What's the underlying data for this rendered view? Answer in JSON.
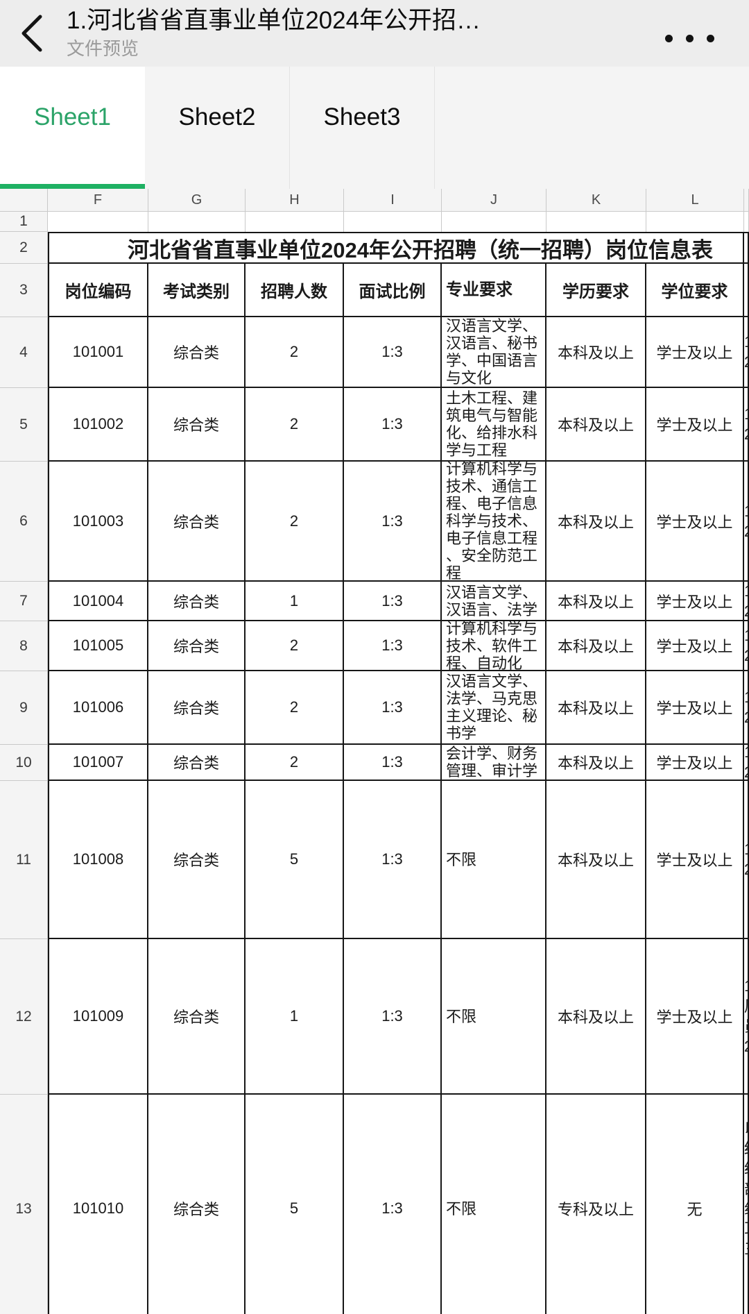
{
  "topbar": {
    "title": "1.河北省省直事业单位2024年公开招…",
    "subtitle": "文件预览",
    "back_icon": "chevron-left-icon",
    "menu_icon": "more-dots-icon"
  },
  "tabs": [
    {
      "label": "Sheet1",
      "active": true
    },
    {
      "label": "Sheet2",
      "active": false
    },
    {
      "label": "Sheet3",
      "active": false
    }
  ],
  "colors": {
    "active_tab_text": "#2ba368",
    "active_tab_underline": "#1fb163",
    "topbar_bg": "#ededed",
    "tab_bg": "#f4f4f4",
    "table_border": "#161616",
    "grid_light": "#c9c9c9"
  },
  "sheet": {
    "column_letters": [
      "F",
      "G",
      "H",
      "I",
      "J",
      "K",
      "L"
    ],
    "empty_row_number": "1",
    "title_row": {
      "number": "2",
      "text": "河北省省直事业单位2024年公开招聘（统一招聘）岗位信息表"
    },
    "header_row": {
      "number": "3",
      "cells": [
        "岗位编码",
        "考试类别",
        "招聘人数",
        "面试比例",
        "专业要求",
        "学历要求",
        "学位要求"
      ]
    },
    "data_rows": [
      {
        "number": "4",
        "code": "101001",
        "exam_type": "综合类",
        "headcount": "2",
        "interview_ratio": "1:3",
        "major": "汉语言文学、汉语言、秘书学、中国语言与文化",
        "education": "本科及以上",
        "degree": "学士及以上",
        "clipped_fragment": "1\n2"
      },
      {
        "number": "5",
        "code": "101002",
        "exam_type": "综合类",
        "headcount": "2",
        "interview_ratio": "1:3",
        "major": "土木工程、建筑电气与智能化、给排水科学与工程",
        "education": "本科及以上",
        "degree": "学士及以上",
        "clipped_fragment": "1\n2"
      },
      {
        "number": "6",
        "code": "101003",
        "exam_type": "综合类",
        "headcount": "2",
        "interview_ratio": "1:3",
        "major": "计算机科学与技术、通信工程、电子信息科学与技术、电子信息工程、安全防范工程",
        "education": "本科及以上",
        "degree": "学士及以上",
        "clipped_fragment": "1\n2"
      },
      {
        "number": "7",
        "code": "101004",
        "exam_type": "综合类",
        "headcount": "1",
        "interview_ratio": "1:3",
        "major": "汉语言文学、汉语言、法学",
        "education": "本科及以上",
        "degree": "学士及以上",
        "clipped_fragment": "1\n2"
      },
      {
        "number": "8",
        "code": "101005",
        "exam_type": "综合类",
        "headcount": "2",
        "interview_ratio": "1:3",
        "major": "计算机科学与技术、软件工程、自动化",
        "education": "本科及以上",
        "degree": "学士及以上",
        "clipped_fragment": "1\n2"
      },
      {
        "number": "9",
        "code": "101006",
        "exam_type": "综合类",
        "headcount": "2",
        "interview_ratio": "1:3",
        "major": "汉语言文学、法学、马克思主义理论、秘书学",
        "education": "本科及以上",
        "degree": "学士及以上",
        "clipped_fragment": "1\n2"
      },
      {
        "number": "10",
        "code": "101007",
        "exam_type": "综合类",
        "headcount": "2",
        "interview_ratio": "1:3",
        "major": "会计学、财务管理、审计学",
        "education": "本科及以上",
        "degree": "学士及以上",
        "clipped_fragment": "1\n2"
      },
      {
        "number": "11",
        "code": "101008",
        "exam_type": "综合类",
        "headcount": "5",
        "interview_ratio": "1:3",
        "major": "不限",
        "education": "本科及以上",
        "degree": "学士及以上",
        "clipped_fragment": "1\n2"
      },
      {
        "number": "12",
        "code": "101009",
        "exam_type": "综合类",
        "headcount": "1",
        "interview_ratio": "1:3",
        "major": "不限",
        "education": "本科及以上",
        "degree": "学士及以上",
        "clipped_fragment": "1\n周\n员\n2"
      },
      {
        "number": "13",
        "code": "101010",
        "exam_type": "综合类",
        "headcount": "5",
        "interview_ratio": "1:3",
        "major": "不限",
        "education": "专科及以上",
        "degree": "无",
        "clipped_fragment": "以\n结\n经\n部\n组\n耳\n三\n刂\n刂"
      }
    ]
  }
}
